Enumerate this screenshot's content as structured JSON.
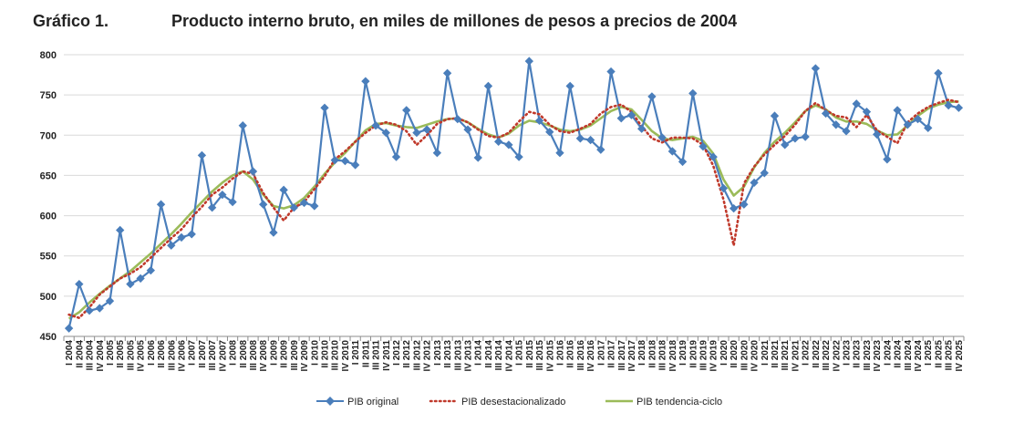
{
  "header": {
    "figure_label": "Gráfico 1.",
    "title": "Producto interno bruto, en miles de millones de pesos a precios de 2004"
  },
  "colors": {
    "original": "#4a7ebb",
    "desestacionalizado": "#c0392b",
    "tendencia": "#9bbb59",
    "grid": "#d9d9d9",
    "axis": "#8c8c8c"
  },
  "chart_data": {
    "type": "line",
    "title": "Producto interno bruto, en miles de millones de pesos a precios de 2004",
    "xlabel": "",
    "ylabel": "",
    "ylim": [
      450,
      800
    ],
    "yticks": [
      450,
      500,
      550,
      600,
      650,
      700,
      750,
      800
    ],
    "grid": true,
    "legend_position": "bottom",
    "categories": [
      "I 2004",
      "II 2004",
      "III 2004",
      "IV 2004",
      "I 2005",
      "II 2005",
      "III 2005",
      "IV 2005",
      "I 2006",
      "II 2006",
      "III 2006",
      "IV 2006",
      "I 2007",
      "II 2007",
      "III 2007",
      "IV 2007",
      "I 2008",
      "II 2008",
      "III 2008",
      "IV 2008",
      "I 2009",
      "II 2009",
      "III 2009",
      "IV 2009",
      "I 2010",
      "II 2010",
      "III 2010",
      "IV 2010",
      "I 2011",
      "II 2011",
      "III 2011",
      "IV 2011",
      "I 2012",
      "II 2012",
      "III 2012",
      "IV 2012",
      "I 2013",
      "II 2013",
      "III 2013",
      "IV 2013",
      "I 2014",
      "II 2014",
      "III 2014",
      "IV 2014",
      "I 2015",
      "II 2015",
      "III 2015",
      "IV 2015",
      "I 2016",
      "II 2016",
      "III 2016",
      "IV 2016",
      "I 2017",
      "II 2017",
      "III 2017",
      "IV 2017",
      "I 2018",
      "II 2018",
      "III 2018",
      "IV 2018",
      "I 2019",
      "II 2019",
      "III 2019",
      "IV 2019",
      "I 2020",
      "II 2020",
      "III 2020",
      "IV 2020",
      "I 2021",
      "II 2021",
      "III 2021",
      "IV 2021",
      "I 2022",
      "II 2022",
      "III 2022",
      "IV 2022",
      "I 2023",
      "II 2023",
      "III 2023",
      "IV 2023",
      "I 2024",
      "II 2024",
      "III 2024",
      "IV 2024",
      "I 2025",
      "II 2025",
      "III 2025",
      "IV 2025"
    ],
    "series": [
      {
        "name": "PIB original",
        "style": "line-diamond",
        "values": [
          460,
          515,
          482,
          485,
          494,
          582,
          515,
          522,
          532,
          614,
          563,
          573,
          577,
          675,
          610,
          626,
          617,
          712,
          655,
          614,
          579,
          632,
          610,
          616,
          612,
          734,
          669,
          668,
          663,
          767,
          712,
          703,
          673,
          731,
          703,
          707,
          678,
          777,
          720,
          707,
          672,
          761,
          692,
          688,
          673,
          792,
          718,
          704,
          678,
          761,
          696,
          694,
          682,
          779,
          721,
          725,
          708,
          748,
          697,
          680,
          667,
          752,
          686,
          673,
          634,
          609,
          614,
          641,
          653,
          724,
          688,
          696,
          698,
          783,
          727,
          713,
          705,
          739,
          729,
          701,
          670,
          731,
          713,
          720,
          709,
          777,
          737,
          734
        ]
      },
      {
        "name": "PIB desestacionalizado",
        "style": "dotted",
        "values": [
          477,
          473,
          486,
          502,
          512,
          522,
          528,
          536,
          548,
          560,
          572,
          583,
          598,
          611,
          626,
          635,
          646,
          655,
          652,
          628,
          610,
          594,
          610,
          617,
          633,
          649,
          670,
          680,
          692,
          703,
          712,
          716,
          713,
          705,
          688,
          700,
          714,
          720,
          721,
          716,
          707,
          699,
          697,
          703,
          717,
          729,
          726,
          713,
          705,
          703,
          708,
          714,
          727,
          735,
          738,
          729,
          711,
          696,
          691,
          697,
          697,
          696,
          688,
          662,
          620,
          563,
          640,
          661,
          676,
          688,
          699,
          713,
          730,
          740,
          731,
          724,
          722,
          710,
          725,
          706,
          698,
          690,
          716,
          727,
          735,
          740,
          744,
          741
        ]
      },
      {
        "name": "PIB tendencia-ciclo",
        "style": "solid",
        "values": [
          472,
          480,
          492,
          503,
          513,
          522,
          531,
          542,
          553,
          565,
          577,
          590,
          604,
          617,
          630,
          641,
          650,
          655,
          645,
          626,
          612,
          609,
          613,
          622,
          636,
          652,
          666,
          678,
          692,
          706,
          714,
          715,
          712,
          710,
          709,
          713,
          717,
          720,
          721,
          716,
          708,
          701,
          697,
          702,
          712,
          718,
          716,
          712,
          707,
          705,
          707,
          712,
          721,
          730,
          735,
          732,
          719,
          705,
          696,
          694,
          696,
          698,
          693,
          677,
          645,
          625,
          636,
          660,
          678,
          692,
          703,
          716,
          730,
          737,
          732,
          722,
          717,
          717,
          714,
          706,
          700,
          701,
          712,
          724,
          733,
          738,
          741,
          742
        ]
      }
    ]
  }
}
